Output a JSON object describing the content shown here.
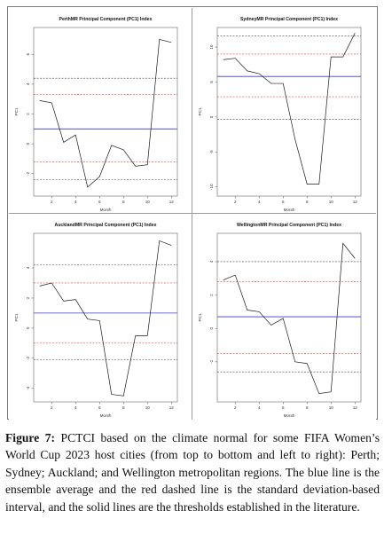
{
  "figure": {
    "caption_label": "Figure 7:",
    "caption_text": " PCTCI based on the climate normal for some FIFA Women’s World Cup 2023 host cities (from top to bottom and left to right): Perth; Sydney; Auckland; and Wellington metropolitan regions. The blue line is the ensemble average and the red dashed line is the standard deviation-based interval, and the solid lines are the thresholds established in the literature."
  },
  "colors": {
    "series": "#1a1a1a",
    "mean": "#3a3ad6",
    "sd": "#e04848",
    "threshold": "#444444"
  },
  "chart_data": [
    {
      "type": "line",
      "title": "PerthMR Principal Component (PC1) Index",
      "xlabel": "Month",
      "ylabel": "PC1",
      "x": [
        1,
        2,
        3,
        4,
        5,
        6,
        7,
        8,
        9,
        10,
        11,
        12
      ],
      "y": [
        2.9,
        2.75,
        0.1,
        0.6,
        -2.9,
        -2.2,
        -0.1,
        -0.4,
        -1.5,
        -1.4,
        7.0,
        6.8
      ],
      "xlim": [
        0.5,
        12.5
      ],
      "ylim": [
        -3.5,
        7.8
      ],
      "xticks": [
        2,
        4,
        6,
        8,
        10,
        12
      ],
      "yticks": [
        -2,
        0,
        2,
        4,
        6
      ],
      "ytick_labels": [
        "-2",
        "0",
        "2",
        "4",
        "6"
      ],
      "mean": 1.0,
      "sd_lines": [
        -1.2,
        3.3
      ],
      "thresholds": [
        -2.4,
        4.4
      ]
    },
    {
      "type": "line",
      "title": "SydneyMR Principal Component (PC1) Index",
      "xlabel": "Month",
      "ylabel": "PC1",
      "x": [
        1,
        2,
        3,
        4,
        5,
        6,
        7,
        8,
        9,
        10,
        11,
        12
      ],
      "y": [
        8.2,
        8.4,
        6.6,
        6.2,
        4.8,
        4.8,
        -3.2,
        -9.6,
        -9.6,
        8.6,
        8.6,
        12.0
      ],
      "xlim": [
        0.5,
        12.5
      ],
      "ylim": [
        -11.3,
        12.8
      ],
      "xticks": [
        2,
        4,
        6,
        8,
        10,
        12
      ],
      "yticks": [
        -10,
        -5,
        0,
        5,
        10
      ],
      "ytick_labels": [
        "-10",
        "-5",
        "0",
        "5",
        "10"
      ],
      "mean": 5.8,
      "sd_lines": [
        2.9,
        9.0
      ],
      "thresholds": [
        -0.3,
        11.6
      ]
    },
    {
      "type": "line",
      "title": "AucklandMR Principal Component (PC1) Index",
      "xlabel": "Month",
      "ylabel": "PC1",
      "x": [
        1,
        2,
        3,
        4,
        5,
        6,
        7,
        8,
        9,
        10,
        11,
        12
      ],
      "y": [
        2.8,
        3.0,
        1.8,
        1.9,
        0.6,
        0.5,
        -4.4,
        -4.5,
        -0.5,
        -0.5,
        5.8,
        5.5
      ],
      "xlim": [
        0.5,
        12.5
      ],
      "ylim": [
        -4.9,
        6.3
      ],
      "xticks": [
        2,
        4,
        6,
        8,
        10,
        12
      ],
      "yticks": [
        -4,
        -2,
        0,
        2,
        4
      ],
      "ytick_labels": [
        "-4",
        "-2",
        "0",
        "2",
        "4"
      ],
      "mean": 1.0,
      "sd_lines": [
        -1.0,
        3.0
      ],
      "thresholds": [
        -2.1,
        4.2
      ]
    },
    {
      "type": "line",
      "title": "WellingtonMR Principal Component (PC1) Index",
      "xlabel": "Month",
      "ylabel": "PC1",
      "x": [
        1,
        2,
        3,
        4,
        5,
        6,
        7,
        8,
        9,
        10,
        11,
        12
      ],
      "y": [
        2.9,
        3.2,
        1.1,
        1.0,
        0.2,
        0.6,
        -2.0,
        -2.1,
        -3.9,
        -3.8,
        5.1,
        4.2
      ],
      "xlim": [
        0.5,
        12.5
      ],
      "ylim": [
        -4.4,
        5.7
      ],
      "xticks": [
        2,
        4,
        6,
        8,
        10,
        12
      ],
      "yticks": [
        -2,
        0,
        2,
        4
      ],
      "ytick_labels": [
        "-2",
        "0",
        "2",
        "4"
      ],
      "mean": 0.7,
      "sd_lines": [
        -1.5,
        2.8
      ],
      "thresholds": [
        -2.6,
        4.0
      ]
    }
  ]
}
